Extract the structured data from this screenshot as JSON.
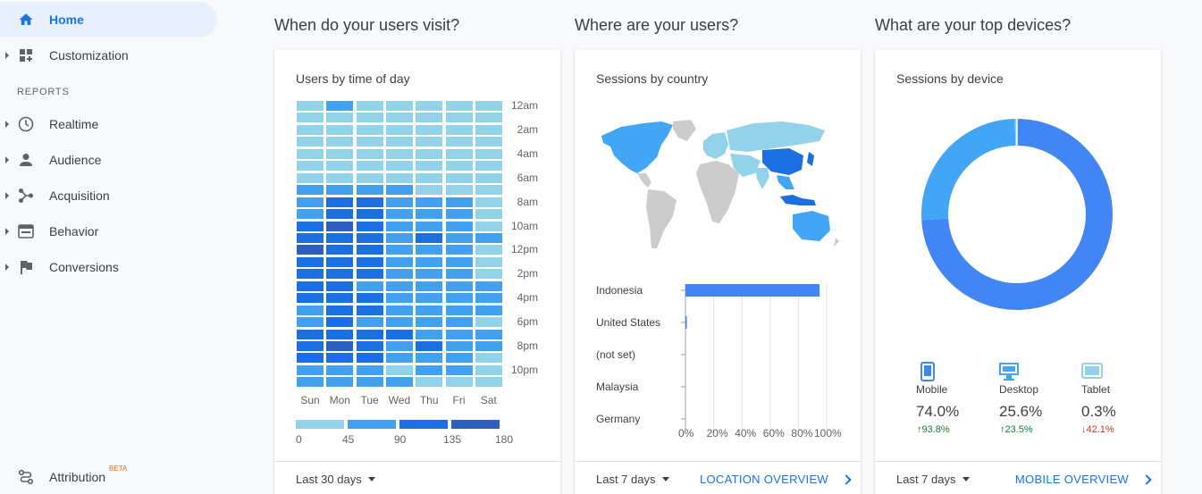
{
  "sidebar": {
    "home": "Home",
    "customization": "Customization",
    "reports_section": "REPORTS",
    "items": [
      "Realtime",
      "Audience",
      "Acquisition",
      "Behavior",
      "Conversions"
    ],
    "attribution": "Attribution",
    "attribution_badge": "BETA"
  },
  "sections": {
    "when": "When do your users visit?",
    "where": "Where are your users?",
    "devices": "What are your top devices?"
  },
  "time_card": {
    "title": "Users by time of day",
    "footer_range": "Last 30 days",
    "days": [
      "Sun",
      "Mon",
      "Tue",
      "Wed",
      "Thu",
      "Fri",
      "Sat"
    ],
    "hour_labels": [
      "12am",
      "2am",
      "4am",
      "6am",
      "8am",
      "10am",
      "12pm",
      "2pm",
      "4pm",
      "6pm",
      "8pm",
      "10pm"
    ],
    "legend_labels": [
      "0",
      "45",
      "90",
      "135",
      "180"
    ],
    "legend_colors": [
      "#93d3ea",
      "#42a0ee",
      "#1c6fe0",
      "#2d5fbf"
    ],
    "heat_levels": [
      [
        1,
        2,
        1,
        1,
        1,
        1,
        1
      ],
      [
        1,
        1,
        1,
        1,
        1,
        1,
        1
      ],
      [
        1,
        1,
        1,
        1,
        1,
        1,
        1
      ],
      [
        1,
        1,
        1,
        1,
        1,
        1,
        1
      ],
      [
        1,
        1,
        1,
        1,
        1,
        1,
        1
      ],
      [
        1,
        1,
        1,
        1,
        1,
        1,
        1
      ],
      [
        1,
        1,
        1,
        1,
        1,
        1,
        1
      ],
      [
        2,
        2,
        2,
        2,
        1,
        1,
        1
      ],
      [
        2,
        3,
        3,
        2,
        2,
        2,
        1
      ],
      [
        2,
        3,
        3,
        2,
        2,
        2,
        1
      ],
      [
        3,
        4,
        3,
        2,
        2,
        2,
        1
      ],
      [
        3,
        3,
        3,
        2,
        3,
        2,
        2
      ],
      [
        4,
        3,
        3,
        2,
        2,
        2,
        1
      ],
      [
        3,
        3,
        3,
        2,
        2,
        2,
        1
      ],
      [
        3,
        3,
        3,
        2,
        2,
        2,
        1
      ],
      [
        3,
        3,
        2,
        2,
        2,
        2,
        2
      ],
      [
        3,
        3,
        3,
        2,
        2,
        2,
        2
      ],
      [
        2,
        3,
        3,
        2,
        2,
        2,
        2
      ],
      [
        2,
        3,
        2,
        2,
        2,
        2,
        1
      ],
      [
        3,
        3,
        3,
        3,
        2,
        2,
        2
      ],
      [
        3,
        4,
        3,
        2,
        3,
        2,
        2
      ],
      [
        3,
        3,
        3,
        2,
        2,
        2,
        1
      ],
      [
        2,
        2,
        2,
        1,
        2,
        2,
        1
      ],
      [
        2,
        2,
        2,
        2,
        1,
        1,
        1
      ]
    ],
    "heat_colors": [
      "#c8e6f5",
      "#93d3ea",
      "#42a0ee",
      "#1c6fe0",
      "#2d5fbf"
    ]
  },
  "location_card": {
    "title": "Sessions by country",
    "footer_range": "Last 7 days",
    "footer_link": "LOCATION OVERVIEW",
    "countries": [
      "Indonesia",
      "United States",
      "(not set)",
      "Malaysia",
      "Germany"
    ],
    "shares": [
      0.95,
      0.01,
      0,
      0,
      0
    ],
    "ticks": [
      "0%",
      "20%",
      "40%",
      "60%",
      "80%",
      "100%"
    ],
    "colors": {
      "high": "#4285f4",
      "mid": "#42a5f5",
      "low": "#93d3ea",
      "none": "#cccccc"
    }
  },
  "device_card": {
    "title": "Sessions by device",
    "footer_range": "Last 7 days",
    "footer_link": "MOBILE OVERVIEW",
    "devices": [
      {
        "name": "Mobile",
        "icon": "smartphone-icon",
        "pct": "74.0%",
        "delta": "93.8%",
        "dir": "up",
        "share": 0.74,
        "color": "#4285f4"
      },
      {
        "name": "Desktop",
        "icon": "desktop-icon",
        "pct": "25.6%",
        "delta": "23.5%",
        "dir": "up",
        "share": 0.256,
        "color": "#42a5f5"
      },
      {
        "name": "Tablet",
        "icon": "tablet-icon",
        "pct": "0.3%",
        "delta": "42.1%",
        "dir": "down",
        "share": 0.003,
        "color": "#93d3ea"
      }
    ],
    "up_color": "#188038",
    "down_color": "#d93025"
  }
}
